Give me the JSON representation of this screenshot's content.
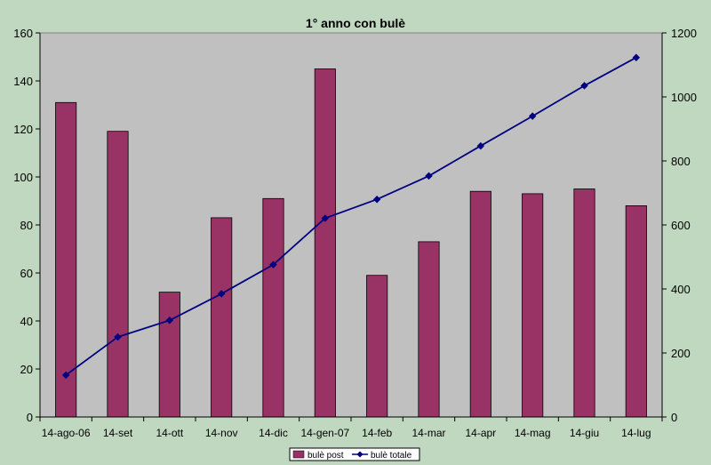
{
  "chart_data": {
    "type": "bar+line",
    "title": "1° anno con bulè",
    "categories": [
      "14-ago-06",
      "14-set",
      "14-ott",
      "14-nov",
      "14-dic",
      "14-gen-07",
      "14-feb",
      "14-mar",
      "14-apr",
      "14-mag",
      "14-giu",
      "14-lug"
    ],
    "series": [
      {
        "name": "bulè post",
        "type": "bar",
        "axis": "left",
        "color": "#993366",
        "values": [
          131,
          119,
          52,
          83,
          91,
          145,
          59,
          73,
          94,
          93,
          95,
          88
        ]
      },
      {
        "name": "bulè totale",
        "type": "line",
        "axis": "right",
        "color": "#000080",
        "values": [
          131,
          250,
          302,
          385,
          476,
          621,
          680,
          753,
          847,
          940,
          1035,
          1123
        ]
      }
    ],
    "y_left": {
      "min": 0,
      "max": 160,
      "step": 20
    },
    "y_right": {
      "min": 0,
      "max": 1200,
      "step": 200
    },
    "plot_background": "#c0c0c0",
    "page_background": "#c0d8c0",
    "grid": false,
    "legend_position": "bottom-center"
  }
}
